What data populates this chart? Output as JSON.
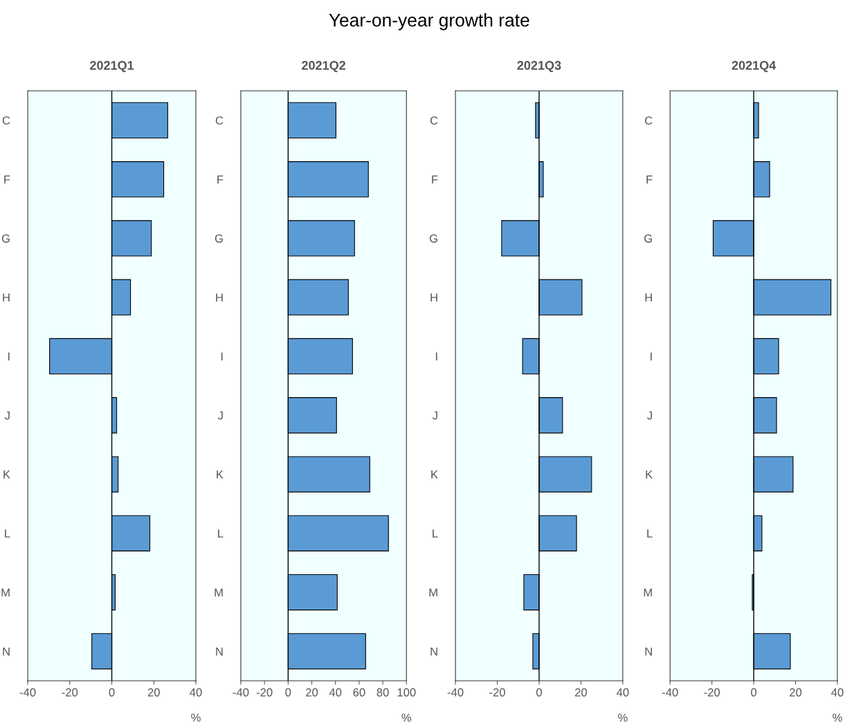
{
  "chart_data": [
    {
      "type": "bar",
      "orientation": "horizontal",
      "title": "2021Q1",
      "xlabel": "%",
      "annotations": [
        "Year-on-year growth rate"
      ],
      "categories": [
        "C",
        "F",
        "G",
        "H",
        "I",
        "J",
        "K",
        "L",
        "M",
        "N"
      ],
      "values": [
        26.6,
        24.7,
        18.8,
        8.9,
        -29.6,
        2.3,
        3.0,
        18.1,
        1.6,
        -9.5
      ],
      "color": "#5b9bd5",
      "xlim": [
        -40,
        40
      ],
      "xticks": [
        -40,
        -20,
        0,
        20,
        40
      ],
      "ref_lines": [
        {
          "axis": "x",
          "value": 0,
          "color": "#000000"
        }
      ],
      "grid": false
    },
    {
      "type": "bar",
      "orientation": "horizontal",
      "title": "2021Q2",
      "xlabel": "%",
      "categories": [
        "C",
        "F",
        "G",
        "H",
        "I",
        "J",
        "K",
        "L",
        "M",
        "N"
      ],
      "values": [
        40.4,
        67.8,
        56.1,
        50.9,
        54.4,
        40.9,
        69.0,
        84.8,
        41.5,
        65.5
      ],
      "color": "#5b9bd5",
      "xlim": [
        -40,
        100
      ],
      "xticks": [
        -40,
        -20,
        0,
        20,
        40,
        60,
        80,
        100
      ],
      "ref_lines": [
        {
          "axis": "x",
          "value": 0,
          "color": "#000000"
        }
      ],
      "grid": false
    },
    {
      "type": "bar",
      "orientation": "horizontal",
      "title": "2021Q3",
      "xlabel": "%",
      "categories": [
        "C",
        "F",
        "G",
        "H",
        "I",
        "J",
        "K",
        "L",
        "M",
        "N"
      ],
      "values": [
        -1.7,
        2.0,
        -17.9,
        20.5,
        -7.9,
        11.2,
        25.1,
        17.9,
        -7.3,
        -3.0
      ],
      "color": "#5b9bd5",
      "xlim": [
        -40,
        40
      ],
      "xticks": [
        -40,
        -20,
        0,
        20,
        40
      ],
      "ref_lines": [
        {
          "axis": "x",
          "value": 0,
          "color": "#000000"
        }
      ],
      "grid": false
    },
    {
      "type": "bar",
      "orientation": "horizontal",
      "title": "2021Q4",
      "xlabel": "%",
      "categories": [
        "C",
        "F",
        "G",
        "H",
        "I",
        "J",
        "K",
        "L",
        "M",
        "N"
      ],
      "values": [
        2.3,
        7.6,
        -19.4,
        36.9,
        11.9,
        10.9,
        18.8,
        3.9,
        -0.7,
        17.5
      ],
      "color": "#5b9bd5",
      "xlim": [
        -40,
        40
      ],
      "xticks": [
        -40,
        -20,
        0,
        20,
        40
      ],
      "ref_lines": [
        {
          "axis": "x",
          "value": 0,
          "color": "#000000"
        }
      ],
      "grid": false
    }
  ]
}
